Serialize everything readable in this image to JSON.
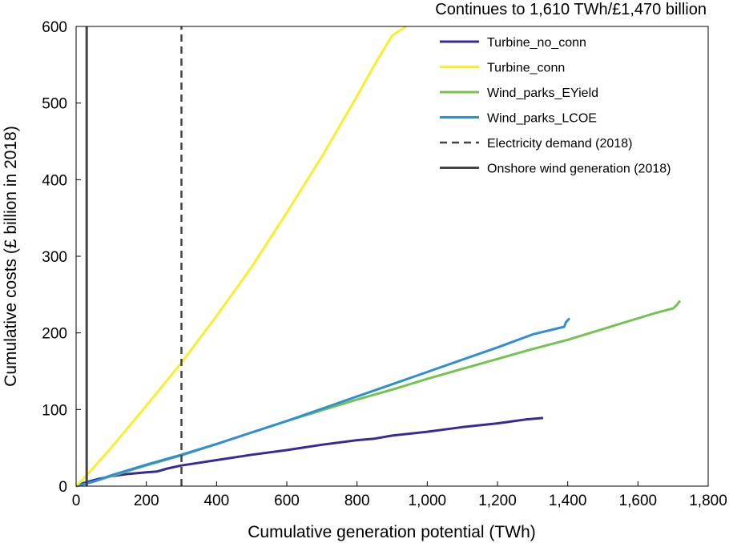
{
  "chart_data": {
    "type": "line",
    "title": "",
    "annotation": "Continues to 1,610 TWh/£1,470 billion",
    "xlabel": "Cumulative generation potential (TWh)",
    "ylabel": "Cumulative costs (£ billion in 2018)",
    "xlim": [
      0,
      1800
    ],
    "ylim": [
      0,
      600
    ],
    "x_ticks": [
      0,
      200,
      400,
      600,
      800,
      1000,
      1200,
      1400,
      1600,
      1800
    ],
    "x_tick_labels": [
      "0",
      "200",
      "400",
      "600",
      "800",
      "1,000",
      "1,200",
      "1,400",
      "1,600",
      "1,800"
    ],
    "y_ticks": [
      0,
      100,
      200,
      300,
      400,
      500,
      600
    ],
    "y_tick_labels": [
      "0",
      "100",
      "200",
      "300",
      "400",
      "500",
      "600"
    ],
    "grid": false,
    "legend_position": "top-right",
    "series": [
      {
        "name": "Turbine_no_conn",
        "color": "#3a2a99",
        "dash": "solid",
        "points": [
          [
            0,
            0
          ],
          [
            20,
            4
          ],
          [
            60,
            9
          ],
          [
            100,
            13
          ],
          [
            150,
            16
          ],
          [
            200,
            18
          ],
          [
            230,
            19
          ],
          [
            260,
            23
          ],
          [
            300,
            27
          ],
          [
            400,
            34
          ],
          [
            500,
            41
          ],
          [
            600,
            47
          ],
          [
            700,
            54
          ],
          [
            800,
            60
          ],
          [
            850,
            62
          ],
          [
            900,
            66
          ],
          [
            1000,
            71
          ],
          [
            1100,
            77
          ],
          [
            1200,
            82
          ],
          [
            1280,
            87
          ],
          [
            1330,
            89
          ]
        ]
      },
      {
        "name": "Turbine_conn",
        "color": "#f7f02a",
        "dash": "solid",
        "points": [
          [
            0,
            0
          ],
          [
            30,
            14
          ],
          [
            100,
            50
          ],
          [
            200,
            105
          ],
          [
            300,
            161
          ],
          [
            400,
            222
          ],
          [
            500,
            286
          ],
          [
            600,
            357
          ],
          [
            700,
            430
          ],
          [
            800,
            509
          ],
          [
            850,
            550
          ],
          [
            900,
            588
          ],
          [
            940,
            604
          ]
        ]
      },
      {
        "name": "Wind_parks_EYield",
        "color": "#72c44f",
        "dash": "solid",
        "points": [
          [
            0,
            0
          ],
          [
            50,
            6
          ],
          [
            100,
            13
          ],
          [
            200,
            27
          ],
          [
            300,
            40
          ],
          [
            400,
            55
          ],
          [
            500,
            70
          ],
          [
            600,
            85
          ],
          [
            700,
            99
          ],
          [
            800,
            113
          ],
          [
            900,
            126
          ],
          [
            1000,
            140
          ],
          [
            1100,
            153
          ],
          [
            1200,
            166
          ],
          [
            1300,
            179
          ],
          [
            1400,
            191
          ],
          [
            1500,
            205
          ],
          [
            1600,
            219
          ],
          [
            1650,
            226
          ],
          [
            1700,
            232
          ],
          [
            1710,
            236
          ],
          [
            1720,
            242
          ]
        ]
      },
      {
        "name": "Wind_parks_LCOE",
        "color": "#2f8fd6",
        "dash": "solid",
        "points": [
          [
            0,
            0
          ],
          [
            50,
            6
          ],
          [
            100,
            14
          ],
          [
            200,
            28
          ],
          [
            300,
            41
          ],
          [
            400,
            55
          ],
          [
            500,
            70
          ],
          [
            600,
            85
          ],
          [
            700,
            101
          ],
          [
            800,
            117
          ],
          [
            900,
            133
          ],
          [
            1000,
            149
          ],
          [
            1100,
            165
          ],
          [
            1200,
            181
          ],
          [
            1300,
            198
          ],
          [
            1390,
            208
          ],
          [
            1395,
            214
          ],
          [
            1405,
            219
          ]
        ]
      },
      {
        "name": "Electricity demand (2018)",
        "color": "#444444",
        "dash": "dashed",
        "points": [
          [
            300,
            0
          ],
          [
            300,
            600
          ]
        ]
      },
      {
        "name": "Onshore wind generation (2018)",
        "color": "#444444",
        "dash": "solid",
        "points": [
          [
            30,
            0
          ],
          [
            30,
            600
          ]
        ]
      }
    ]
  }
}
